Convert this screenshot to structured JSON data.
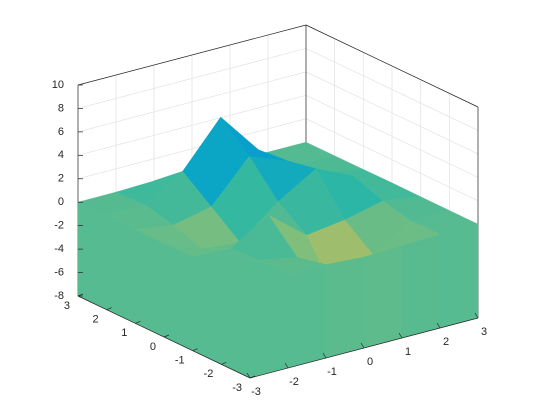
{
  "chart_data": {
    "type": "surface",
    "x": [
      -3,
      -2,
      -1,
      0,
      1,
      2,
      3
    ],
    "y": [
      -3,
      -2,
      -1,
      0,
      1,
      2,
      3
    ],
    "z": [
      [
        0,
        0,
        -0.03,
        -0.25,
        -0.11,
        -0.01,
        0
      ],
      [
        0,
        0.05,
        -0.59,
        -4.76,
        -2.1,
        -0.06,
        0
      ],
      [
        0,
        -0.13,
        1.85,
        -0.72,
        -0.27,
        0.5,
        0.01
      ],
      [
        -0.03,
        -1.33,
        -1.65,
        0.98,
        2.94,
        1.41,
        0.03
      ],
      [
        0,
        -0.48,
        0.23,
        3.69,
        2.44,
        0.58,
        0.01
      ],
      [
        0,
        0.08,
        2.09,
        5.86,
        2.21,
        0.13,
        0
      ],
      [
        0,
        0.01,
        0.11,
        0.3,
        0.11,
        0.01,
        0
      ]
    ],
    "xlim": [
      -3,
      3
    ],
    "ylim": [
      -3,
      3
    ],
    "zlim": [
      -8,
      10
    ],
    "xticks": [
      -3,
      -2,
      -1,
      0,
      1,
      2,
      3
    ],
    "yticks": [
      -3,
      -2,
      -1,
      0,
      1,
      2,
      3
    ],
    "zticks": [
      -8,
      -6,
      -4,
      -2,
      0,
      2,
      4,
      6,
      8,
      10
    ],
    "grid": true,
    "colormap": [
      "#352a87",
      "#0f5cdd",
      "#1481d6",
      "#06a4ca",
      "#2eb7a4",
      "#87bf77",
      "#d1bb59",
      "#fec832",
      "#f9fb0e"
    ]
  }
}
